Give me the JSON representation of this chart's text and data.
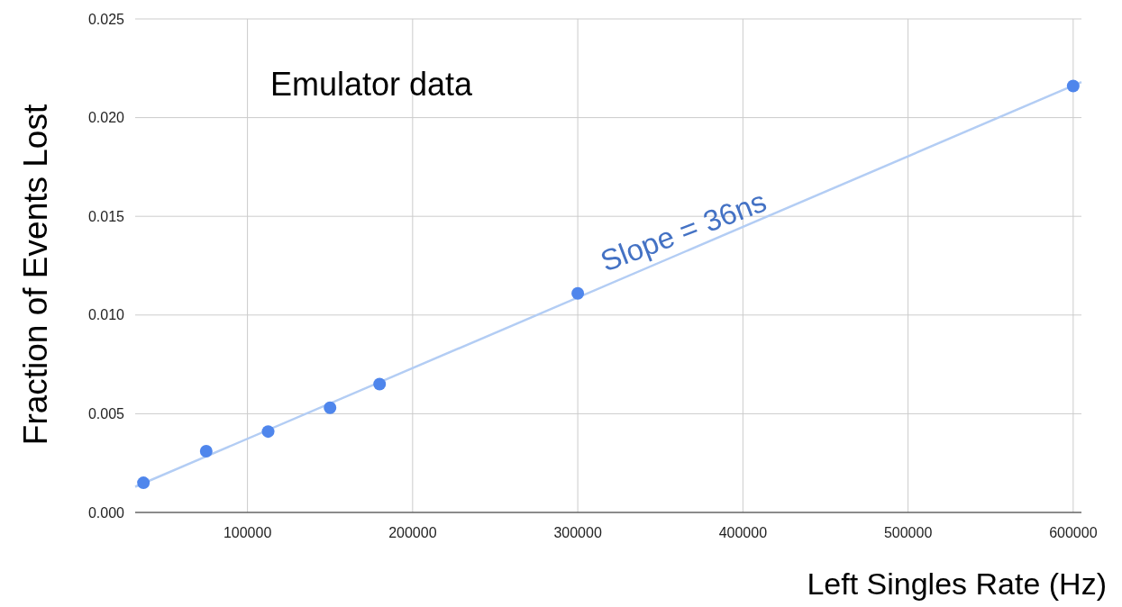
{
  "chart_data": {
    "type": "scatter",
    "xlabel": "Left Singles Rate (Hz)",
    "ylabel": "Fraction of Events Lost",
    "annotations": [
      "Emulator data",
      "Slope = 36ns"
    ],
    "series": [
      {
        "color": "#4f86ec",
        "marker": "circle",
        "x": [
          37000,
          75000,
          112500,
          150000,
          180000,
          300000,
          600000
        ],
        "values": [
          0.0015,
          0.0031,
          0.0041,
          0.0053,
          0.0065,
          0.0111,
          0.0216
        ]
      },
      {
        "type": "line",
        "marker": "none",
        "color": "#b3cdf4",
        "x": [
          32000,
          605000
        ],
        "values": [
          0.0013,
          0.0218
        ]
      }
    ],
    "xlim": [
      32000,
      605000
    ],
    "ylim": [
      0,
      0.025
    ],
    "xticks": [
      100000,
      200000,
      300000,
      400000,
      500000,
      600000
    ],
    "yticks": [
      {
        "value": 0,
        "label": "0.000"
      },
      {
        "value": 0.005,
        "label": "0.005"
      },
      {
        "value": 0.01,
        "label": "0.010"
      },
      {
        "value": 0.015,
        "label": "0.015"
      },
      {
        "value": 0.02,
        "label": "0.020"
      },
      {
        "value": 0.025,
        "label": "0.025"
      }
    ],
    "grid": true,
    "line_style": "solid"
  }
}
